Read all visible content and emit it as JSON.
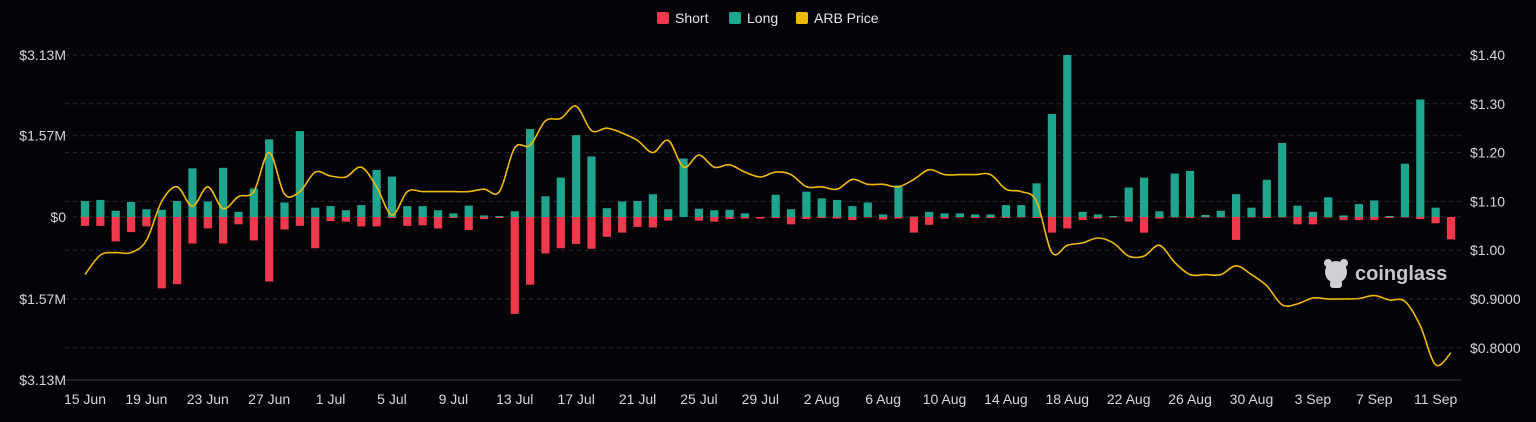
{
  "chart_data": {
    "type": "bar",
    "x": [
      "15 Jun",
      "16 Jun",
      "17 Jun",
      "18 Jun",
      "19 Jun",
      "20 Jun",
      "21 Jun",
      "22 Jun",
      "23 Jun",
      "24 Jun",
      "25 Jun",
      "26 Jun",
      "27 Jun",
      "28 Jun",
      "29 Jun",
      "30 Jun",
      "1 Jul",
      "2 Jul",
      "3 Jul",
      "4 Jul",
      "5 Jul",
      "6 Jul",
      "7 Jul",
      "8 Jul",
      "9 Jul",
      "10 Jul",
      "11 Jul",
      "12 Jul",
      "13 Jul",
      "14 Jul",
      "15 Jul",
      "16 Jul",
      "17 Jul",
      "18 Jul",
      "19 Jul",
      "20 Jul",
      "21 Jul",
      "22 Jul",
      "23 Jul",
      "24 Jul",
      "25 Jul",
      "26 Jul",
      "27 Jul",
      "28 Jul",
      "29 Jul",
      "30 Jul",
      "31 Jul",
      "1 Aug",
      "2 Aug",
      "3 Aug",
      "4 Aug",
      "5 Aug",
      "6 Aug",
      "7 Aug",
      "8 Aug",
      "9 Aug",
      "10 Aug",
      "11 Aug",
      "12 Aug",
      "13 Aug",
      "14 Aug",
      "15 Aug",
      "16 Aug",
      "17 Aug",
      "18 Aug",
      "19 Aug",
      "20 Aug",
      "21 Aug",
      "22 Aug",
      "23 Aug",
      "24 Aug",
      "25 Aug",
      "26 Aug",
      "27 Aug",
      "28 Aug",
      "29 Aug",
      "30 Aug",
      "31 Aug",
      "1 Sep",
      "2 Sep",
      "3 Sep",
      "4 Sep",
      "5 Sep",
      "6 Sep",
      "7 Sep",
      "8 Sep",
      "9 Sep",
      "10 Sep",
      "11 Sep",
      "12 Sep"
    ],
    "x_tick_labels": [
      "15 Jun",
      "19 Jun",
      "23 Jun",
      "27 Jun",
      "1 Jul",
      "5 Jul",
      "9 Jul",
      "13 Jul",
      "17 Jul",
      "21 Jul",
      "25 Jul",
      "29 Jul",
      "2 Aug",
      "6 Aug",
      "10 Aug",
      "14 Aug",
      "18 Aug",
      "22 Aug",
      "26 Aug",
      "30 Aug",
      "3 Sep",
      "7 Sep",
      "11 Sep"
    ],
    "y_left_ticks": [
      {
        "label": "$3.13M",
        "value": 3.13
      },
      {
        "label": "$1.57M",
        "value": 1.57
      },
      {
        "label": "$0",
        "value": 0
      },
      {
        "label": "$1.57M",
        "value": -1.57
      },
      {
        "label": "$3.13M",
        "value": -3.13
      }
    ],
    "y_right_ticks": [
      {
        "label": "$1.40",
        "value": 1.4
      },
      {
        "label": "$1.30",
        "value": 1.3
      },
      {
        "label": "$1.20",
        "value": 1.2
      },
      {
        "label": "$1.10",
        "value": 1.1
      },
      {
        "label": "$1.00",
        "value": 1.0
      },
      {
        "label": "$0.9000",
        "value": 0.9
      },
      {
        "label": "$0.8000",
        "value": 0.8
      }
    ],
    "ylim_left": [
      -3.13,
      3.13
    ],
    "ylim_right": [
      0.734,
      1.4
    ],
    "grid": true,
    "legend_position": "top-center",
    "series": [
      {
        "name": "Short",
        "color": "#f0394d",
        "axis": "left",
        "type": "bar",
        "values": [
          0.17,
          0.17,
          0.47,
          0.29,
          0.18,
          1.37,
          1.29,
          0.51,
          0.22,
          0.51,
          0.14,
          0.45,
          1.24,
          0.24,
          0.17,
          0.6,
          0.08,
          0.09,
          0.18,
          0.18,
          0.02,
          0.17,
          0.16,
          0.22,
          0.02,
          0.25,
          0.04,
          0.02,
          1.86,
          1.3,
          0.7,
          0.6,
          0.52,
          0.61,
          0.38,
          0.3,
          0.19,
          0.2,
          0.07,
          0,
          0.07,
          0.09,
          0.04,
          0.03,
          0.03,
          0.02,
          0.14,
          0.04,
          0.02,
          0.03,
          0.06,
          0.01,
          0.05,
          0.03,
          0.3,
          0.15,
          0.03,
          0.01,
          0.02,
          0.02,
          0.02,
          0.01,
          0.02,
          0.3,
          0.22,
          0.06,
          0.03,
          0.01,
          0.09,
          0.3,
          0.03,
          0.01,
          0.02,
          0.01,
          0.01,
          0.44,
          0.01,
          0.02,
          0.01,
          0.14,
          0.14,
          0.01,
          0.06,
          0.06,
          0.06,
          0.02,
          0.01,
          0.04,
          0.12,
          0.43
        ]
      },
      {
        "name": "Long",
        "color": "#1fa58d",
        "axis": "left",
        "type": "bar",
        "values": [
          0.31,
          0.33,
          0.12,
          0.29,
          0.15,
          0.14,
          0.31,
          0.94,
          0.3,
          0.95,
          0.1,
          0.55,
          1.5,
          0.28,
          1.66,
          0.18,
          0.21,
          0.13,
          0.23,
          0.91,
          0.78,
          0.21,
          0.21,
          0.13,
          0.07,
          0.22,
          0.03,
          0.02,
          0.11,
          1.7,
          0.4,
          0.76,
          1.58,
          1.17,
          0.17,
          0.3,
          0.31,
          0.44,
          0.15,
          1.13,
          0.16,
          0.13,
          0.14,
          0.07,
          0,
          0.43,
          0.15,
          0.49,
          0.36,
          0.33,
          0.21,
          0.28,
          0.05,
          0.61,
          0.01,
          0.1,
          0.07,
          0.07,
          0.05,
          0.05,
          0.23,
          0.23,
          0.65,
          1.99,
          3.13,
          0.1,
          0.05,
          0.02,
          0.57,
          0.76,
          0.11,
          0.84,
          0.89,
          0.04,
          0.12,
          0.44,
          0.18,
          0.72,
          1.43,
          0.22,
          0.1,
          0.38,
          0.03,
          0.25,
          0.32,
          0.02,
          1.03,
          2.27,
          0.18,
          0
        ]
      },
      {
        "name": "ARB Price",
        "color": "#f0b90b",
        "axis": "right",
        "type": "line",
        "values": [
          0.95,
          0.99,
          0.995,
          0.995,
          1.02,
          1.1,
          1.13,
          1.09,
          1.13,
          1.085,
          1.11,
          1.12,
          1.2,
          1.115,
          1.12,
          1.16,
          1.152,
          1.15,
          1.17,
          1.13,
          1.072,
          1.12,
          1.12,
          1.12,
          1.12,
          1.12,
          1.125,
          1.12,
          1.21,
          1.215,
          1.265,
          1.27,
          1.295,
          1.245,
          1.25,
          1.24,
          1.225,
          1.2,
          1.225,
          1.17,
          1.195,
          1.17,
          1.175,
          1.16,
          1.15,
          1.16,
          1.155,
          1.13,
          1.13,
          1.125,
          1.145,
          1.135,
          1.135,
          1.13,
          1.145,
          1.165,
          1.155,
          1.155,
          1.155,
          1.155,
          1.125,
          1.12,
          1.1,
          0.995,
          1.01,
          1.015,
          1.025,
          1.015,
          0.988,
          0.988,
          1.01,
          0.975,
          0.95,
          0.95,
          0.95,
          0.968,
          0.95,
          0.927,
          0.888,
          0.89,
          0.902,
          0.9,
          0.9,
          0.901,
          0.907,
          0.898,
          0.895,
          0.845,
          0.765,
          0.79
        ]
      }
    ]
  },
  "legend": [
    {
      "label": "Short",
      "color": "#f0394d"
    },
    {
      "label": "Long",
      "color": "#1fa58d"
    },
    {
      "label": "ARB Price",
      "color": "#f0b90b"
    }
  ],
  "watermark": {
    "text": "coinglass",
    "icon": "coinglass-logo-icon"
  },
  "colors": {
    "background": "#040408",
    "grid": "#2a2a33",
    "text": "#d6d6dc"
  }
}
